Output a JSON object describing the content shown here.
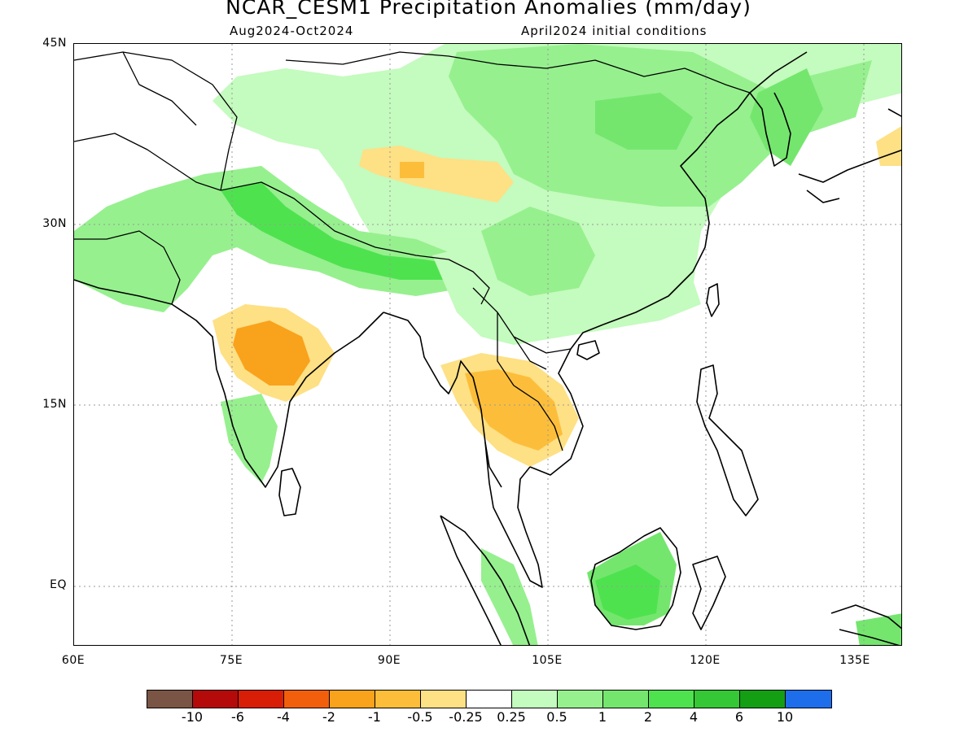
{
  "title": "NCAR_CESM1 Precipitation Anomalies (mm/day)",
  "subtitle_left": "Aug2024-Oct2024",
  "subtitle_right": "April2024 initial conditions",
  "y_labels": [
    "45N",
    "30N",
    "15N",
    "EQ"
  ],
  "x_labels": [
    "60E",
    "75E",
    "90E",
    "105E",
    "120E",
    "135E"
  ],
  "colorbar": {
    "colors": [
      "#7a5545",
      "#b50a0a",
      "#d81e06",
      "#f25f0c",
      "#f9a21c",
      "#fcbe3a",
      "#fee085",
      "#ffffff",
      "#c4fbbe",
      "#96f08e",
      "#74e66e",
      "#4fe24f",
      "#35c735",
      "#149e14",
      "#1e6eeb"
    ],
    "labels": [
      "-10",
      "-6",
      "-4",
      "-2",
      "-1",
      "-0.5",
      "-0.25",
      "0.25",
      "0.5",
      "1",
      "2",
      "4",
      "6",
      "10"
    ]
  },
  "legend_colors": {
    "light_green": "#c4fbbe",
    "green1": "#96f08e",
    "green2": "#74e66e",
    "green3": "#4fe24f",
    "yellow": "#fee085",
    "orange_light": "#fcbe3a",
    "orange": "#f9a21c"
  }
}
